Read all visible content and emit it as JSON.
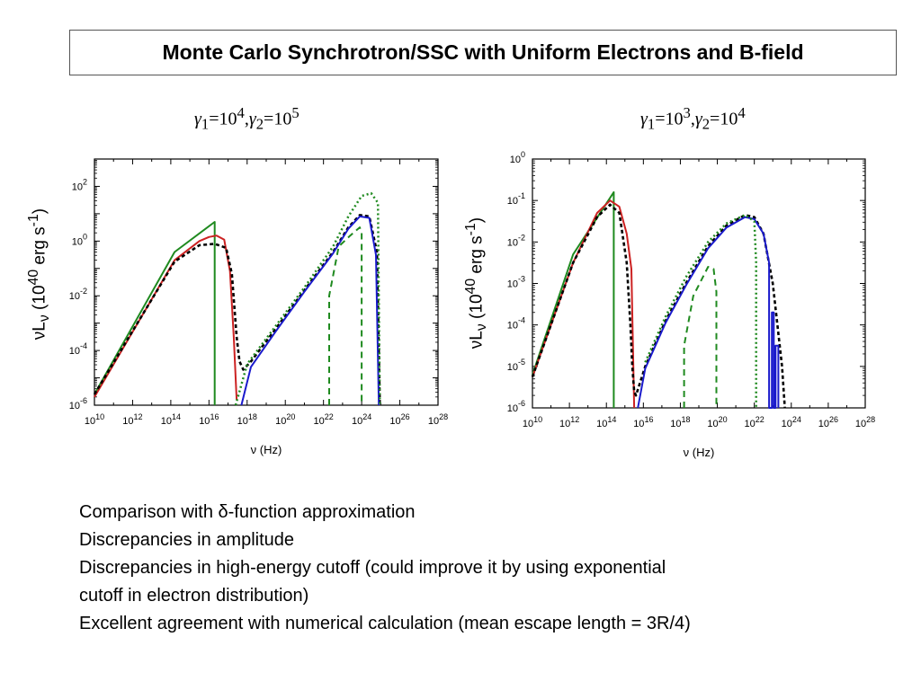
{
  "title": "Monte Carlo Synchrotron/SSC with Uniform Electrons and B-field",
  "notes": [
    "Comparison with δ-function approximation",
    "Discrepancies in amplitude",
    "Discrepancies in high-energy cutoff (could improve it by using exponential",
    " cutoff in electron distribution)",
    "Excellent agreement with numerical calculation (mean escape length = 3R/4)"
  ],
  "colors": {
    "red": "#cc2222",
    "green": "#1f8a1f",
    "blue": "#1a1acc",
    "black": "#000000"
  },
  "chart_data": [
    {
      "type": "line",
      "params": "γ1 = 10^4, γ2 = 10^5",
      "param_parts": {
        "g1": "γ",
        "s1": "1",
        "e1": "=10",
        "p1": "4",
        "sep": ",",
        "g2": "γ",
        "s2": "2",
        "e2": "=10",
        "p2": "5"
      },
      "xlabel": "ν (Hz)",
      "ylabel": "νLν (10^40 erg s^-1)",
      "xscale": "log",
      "yscale": "log",
      "xlim_exp": [
        10,
        28
      ],
      "ylim_exp": [
        -6,
        3
      ],
      "xticks": [
        "10^10",
        "10^12",
        "10^14",
        "10^16",
        "10^18",
        "10^20",
        "10^22",
        "10^24",
        "10^26",
        "10^28"
      ],
      "yticks": [
        "10^-6",
        "10^-4",
        "10^-2",
        "10^0",
        "10^2"
      ],
      "series": [
        {
          "color": "green",
          "style": "solid",
          "points": [
            [
              10,
              -5.6
            ],
            [
              14.2,
              -0.4
            ],
            [
              16.3,
              0.7
            ],
            [
              16.3,
              -6
            ]
          ]
        },
        {
          "color": "red",
          "style": "solid",
          "points": [
            [
              10,
              -5.7
            ],
            [
              14.2,
              -0.7
            ],
            [
              15.5,
              0
            ],
            [
              16,
              0.15
            ],
            [
              16.4,
              0.2
            ],
            [
              16.8,
              0.05
            ],
            [
              17.1,
              -1.1
            ],
            [
              17.3,
              -3.5
            ],
            [
              17.45,
              -5.8
            ]
          ]
        },
        {
          "color": "black",
          "style": "dashed",
          "points": [
            [
              10,
              -5.6
            ],
            [
              14.2,
              -0.75
            ],
            [
              15.5,
              -0.15
            ],
            [
              16.3,
              -0.1
            ],
            [
              16.9,
              -0.25
            ],
            [
              17.2,
              -1.2
            ],
            [
              17.45,
              -3.5
            ],
            [
              17.6,
              -4.4
            ],
            [
              17.8,
              -4.7
            ],
            [
              18.2,
              -4.4
            ],
            [
              19.5,
              -3.2
            ],
            [
              21,
              -1.8
            ],
            [
              22.5,
              -0.4
            ],
            [
              23.3,
              0.5
            ],
            [
              23.9,
              0.95
            ],
            [
              24.4,
              0.9
            ],
            [
              24.8,
              -0.4
            ],
            [
              24.95,
              -6
            ]
          ]
        },
        {
          "color": "blue",
          "style": "solid",
          "points": [
            [
              17.7,
              -6
            ],
            [
              18.2,
              -4.6
            ],
            [
              19.5,
              -3.3
            ],
            [
              21,
              -1.85
            ],
            [
              22.5,
              -0.45
            ],
            [
              23.3,
              0.45
            ],
            [
              23.9,
              0.9
            ],
            [
              24.4,
              0.85
            ],
            [
              24.75,
              -0.5
            ],
            [
              24.9,
              -6
            ]
          ]
        },
        {
          "color": "green",
          "style": "dotted",
          "points": [
            [
              17.4,
              -6
            ],
            [
              18,
              -4.5
            ],
            [
              19.5,
              -3.1
            ],
            [
              21,
              -1.7
            ],
            [
              22.5,
              -0.2
            ],
            [
              23.3,
              0.9
            ],
            [
              24,
              1.65
            ],
            [
              24.5,
              1.75
            ],
            [
              24.85,
              1.4
            ],
            [
              24.95,
              -6
            ]
          ]
        },
        {
          "color": "green",
          "style": "dashed",
          "points": [
            [
              22.3,
              -6
            ],
            [
              22.3,
              -2
            ],
            [
              22.8,
              -0.2
            ],
            [
              23.4,
              0.2
            ],
            [
              23.9,
              0.5
            ],
            [
              24,
              0.3
            ],
            [
              24,
              -6
            ]
          ]
        }
      ]
    },
    {
      "type": "line",
      "params": "γ1 = 10^3, γ2 = 10^4",
      "param_parts": {
        "g1": "γ",
        "s1": "1",
        "e1": "=10",
        "p1": "3",
        "sep": ",",
        "g2": "γ",
        "s2": "2",
        "e2": "=10",
        "p2": "4"
      },
      "xlabel": "ν (Hz)",
      "ylabel": "νLν (10^40 erg s^-1)",
      "xscale": "log",
      "yscale": "log",
      "xlim_exp": [
        10,
        28
      ],
      "ylim_exp": [
        -6,
        0
      ],
      "xticks": [
        "10^10",
        "10^12",
        "10^14",
        "10^16",
        "10^18",
        "10^20",
        "10^22",
        "10^24",
        "10^26",
        "10^28"
      ],
      "yticks": [
        "10^-6",
        "10^-5",
        "10^-4",
        "10^-3",
        "10^-2",
        "10^-1",
        "10^0"
      ],
      "series": [
        {
          "color": "green",
          "style": "solid",
          "points": [
            [
              10,
              -5.2
            ],
            [
              12.2,
              -2.3
            ],
            [
              14.4,
              -0.8
            ],
            [
              14.4,
              -6
            ]
          ]
        },
        {
          "color": "red",
          "style": "solid",
          "points": [
            [
              10,
              -5.25
            ],
            [
              12.2,
              -2.5
            ],
            [
              13.5,
              -1.3
            ],
            [
              14.2,
              -1
            ],
            [
              14.7,
              -1.15
            ],
            [
              15.1,
              -1.8
            ],
            [
              15.35,
              -2.65
            ],
            [
              15.5,
              -6
            ]
          ]
        },
        {
          "color": "black",
          "style": "dashed",
          "points": [
            [
              10,
              -5.25
            ],
            [
              12.2,
              -2.5
            ],
            [
              13.5,
              -1.4
            ],
            [
              14.2,
              -1.1
            ],
            [
              14.7,
              -1.3
            ],
            [
              15.1,
              -2.5
            ],
            [
              15.3,
              -4
            ],
            [
              15.4,
              -5
            ],
            [
              15.5,
              -5.6
            ],
            [
              15.6,
              -5.7
            ],
            [
              16.1,
              -5
            ],
            [
              17.2,
              -3.9
            ],
            [
              18.3,
              -3
            ],
            [
              19.5,
              -2.1
            ],
            [
              20.5,
              -1.6
            ],
            [
              21.5,
              -1.35
            ],
            [
              22,
              -1.4
            ],
            [
              22.5,
              -1.8
            ],
            [
              23,
              -3
            ],
            [
              23.5,
              -5
            ],
            [
              23.65,
              -6
            ]
          ]
        },
        {
          "color": "blue",
          "style": "solid",
          "points": [
            [
              15.7,
              -6
            ],
            [
              16.1,
              -5.05
            ],
            [
              17.2,
              -3.95
            ],
            [
              18.3,
              -3.05
            ],
            [
              19.5,
              -2.15
            ],
            [
              20.5,
              -1.65
            ],
            [
              21.5,
              -1.4
            ],
            [
              22,
              -1.45
            ],
            [
              22.5,
              -1.8
            ],
            [
              22.8,
              -2.5
            ],
            [
              22.8,
              -6
            ],
            [
              22.95,
              -6
            ],
            [
              22.95,
              -3.7
            ],
            [
              23.05,
              -3.7
            ],
            [
              23.05,
              -6
            ],
            [
              23.15,
              -6
            ],
            [
              23.15,
              -4.5
            ],
            [
              23.3,
              -4.5
            ],
            [
              23.3,
              -6
            ]
          ]
        },
        {
          "color": "green",
          "style": "dotted",
          "points": [
            [
              16.1,
              -4.9
            ],
            [
              17.2,
              -3.8
            ],
            [
              18.3,
              -2.85
            ],
            [
              19.5,
              -2.0
            ],
            [
              20.5,
              -1.55
            ],
            [
              21.5,
              -1.35
            ],
            [
              22,
              -1.5
            ],
            [
              22.1,
              -2.5
            ],
            [
              22.1,
              -6
            ]
          ]
        },
        {
          "color": "green",
          "style": "dashed",
          "points": [
            [
              18.2,
              -6
            ],
            [
              18.2,
              -4.5
            ],
            [
              18.7,
              -3.3
            ],
            [
              19.5,
              -2.6
            ],
            [
              19.8,
              -2.65
            ],
            [
              19.95,
              -3.2
            ],
            [
              19.95,
              -6
            ]
          ]
        }
      ]
    }
  ]
}
